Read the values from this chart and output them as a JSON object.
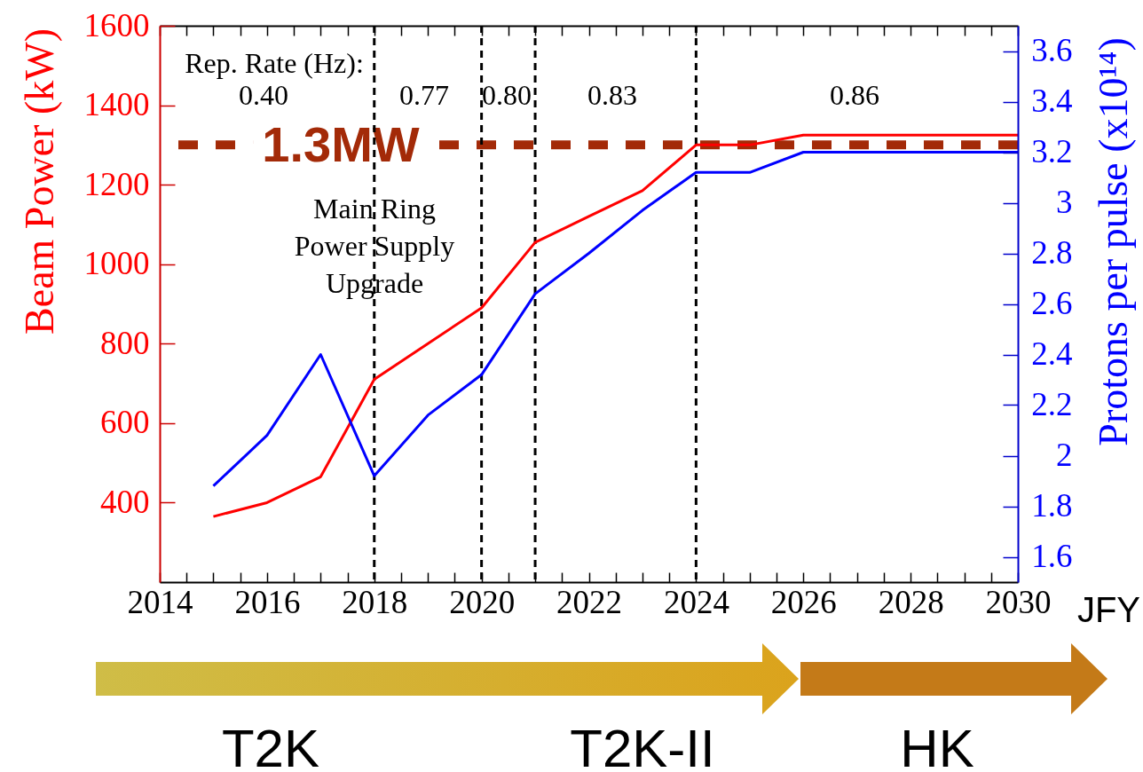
{
  "chart_data": {
    "type": "line",
    "xlabel": "JFY",
    "ylabel": "Beam Power (kW)",
    "y2label": "Protons per pulse (x10¹⁴)",
    "x": [
      2015,
      2016,
      2017,
      2018,
      2019,
      2020,
      2021,
      2022,
      2023,
      2024,
      2025,
      2026,
      2027,
      2028,
      2029,
      2030
    ],
    "series": [
      {
        "color": "#ff0000",
        "values": [
          365,
          400,
          465,
          710,
          800,
          890,
          1055,
          1120,
          1185,
          1300,
          1300,
          1325,
          1325,
          1325,
          1325,
          1325
        ]
      },
      {
        "color": "#0000ff",
        "axis": "y2",
        "values": [
          1.88,
          2.08,
          2.4,
          1.92,
          2.16,
          2.32,
          2.64,
          2.8,
          2.97,
          3.12,
          3.12,
          3.2,
          3.2,
          3.2,
          3.2,
          3.2
        ]
      }
    ],
    "xlim": [
      2014,
      2030
    ],
    "xticks": [
      2014,
      {
        "value": 2014.5,
        "label": null
      },
      {
        "value": 2015,
        "label": null
      },
      {
        "value": 2015.5,
        "label": null
      },
      2016,
      {
        "value": 2016.5,
        "label": null
      },
      {
        "value": 2017,
        "label": null
      },
      {
        "value": 2017.5,
        "label": null
      },
      2018,
      {
        "value": 2018.5,
        "label": null
      },
      {
        "value": 2019,
        "label": null
      },
      {
        "value": 2019.5,
        "label": null
      },
      2020,
      {
        "value": 2020.5,
        "label": null
      },
      {
        "value": 2021,
        "label": null
      },
      {
        "value": 2021.5,
        "label": null
      },
      2022,
      {
        "value": 2022.5,
        "label": null
      },
      {
        "value": 2023,
        "label": null
      },
      {
        "value": 2023.5,
        "label": null
      },
      2024,
      {
        "value": 2024.5,
        "label": null
      },
      {
        "value": 2025,
        "label": null
      },
      {
        "value": 2025.5,
        "label": null
      },
      2026,
      {
        "value": 2026.5,
        "label": null
      },
      {
        "value": 2027,
        "label": null
      },
      {
        "value": 2027.5,
        "label": null
      },
      2028,
      {
        "value": 2028.5,
        "label": null
      },
      {
        "value": 2029,
        "label": null
      },
      {
        "value": 2029.5,
        "label": null
      },
      2030
    ],
    "ylim": [
      200,
      1600
    ],
    "yticks": [
      400,
      600,
      800,
      1000,
      1200,
      1400,
      1600
    ],
    "y2lim": [
      1.5,
      3.7
    ],
    "y2ticks": [
      1.6,
      1.8,
      2,
      2.2,
      2.4,
      2.6,
      2.8,
      3,
      3.2,
      3.4,
      3.6
    ],
    "ref_lines": [
      {
        "axis": "y",
        "value": 1300,
        "label": "1.3MW",
        "color": "#a32a08",
        "line_style": "dashed"
      },
      {
        "axis": "x",
        "value": 2018,
        "color": "#000000",
        "line_style": "dashed"
      },
      {
        "axis": "x",
        "value": 2020,
        "color": "#000000",
        "line_style": "dashed"
      },
      {
        "axis": "x",
        "value": 2021,
        "color": "#000000",
        "line_style": "dashed"
      },
      {
        "axis": "x",
        "value": 2024,
        "color": "#000000",
        "line_style": "dashed"
      }
    ],
    "annotations": [
      "Rep. Rate (Hz):",
      "0.40",
      "0.77",
      "0.80",
      "0.83",
      "0.86",
      "Main Ring\nPower Supply\nUpgrade",
      "T2K",
      "T2K-II",
      "HK"
    ]
  }
}
